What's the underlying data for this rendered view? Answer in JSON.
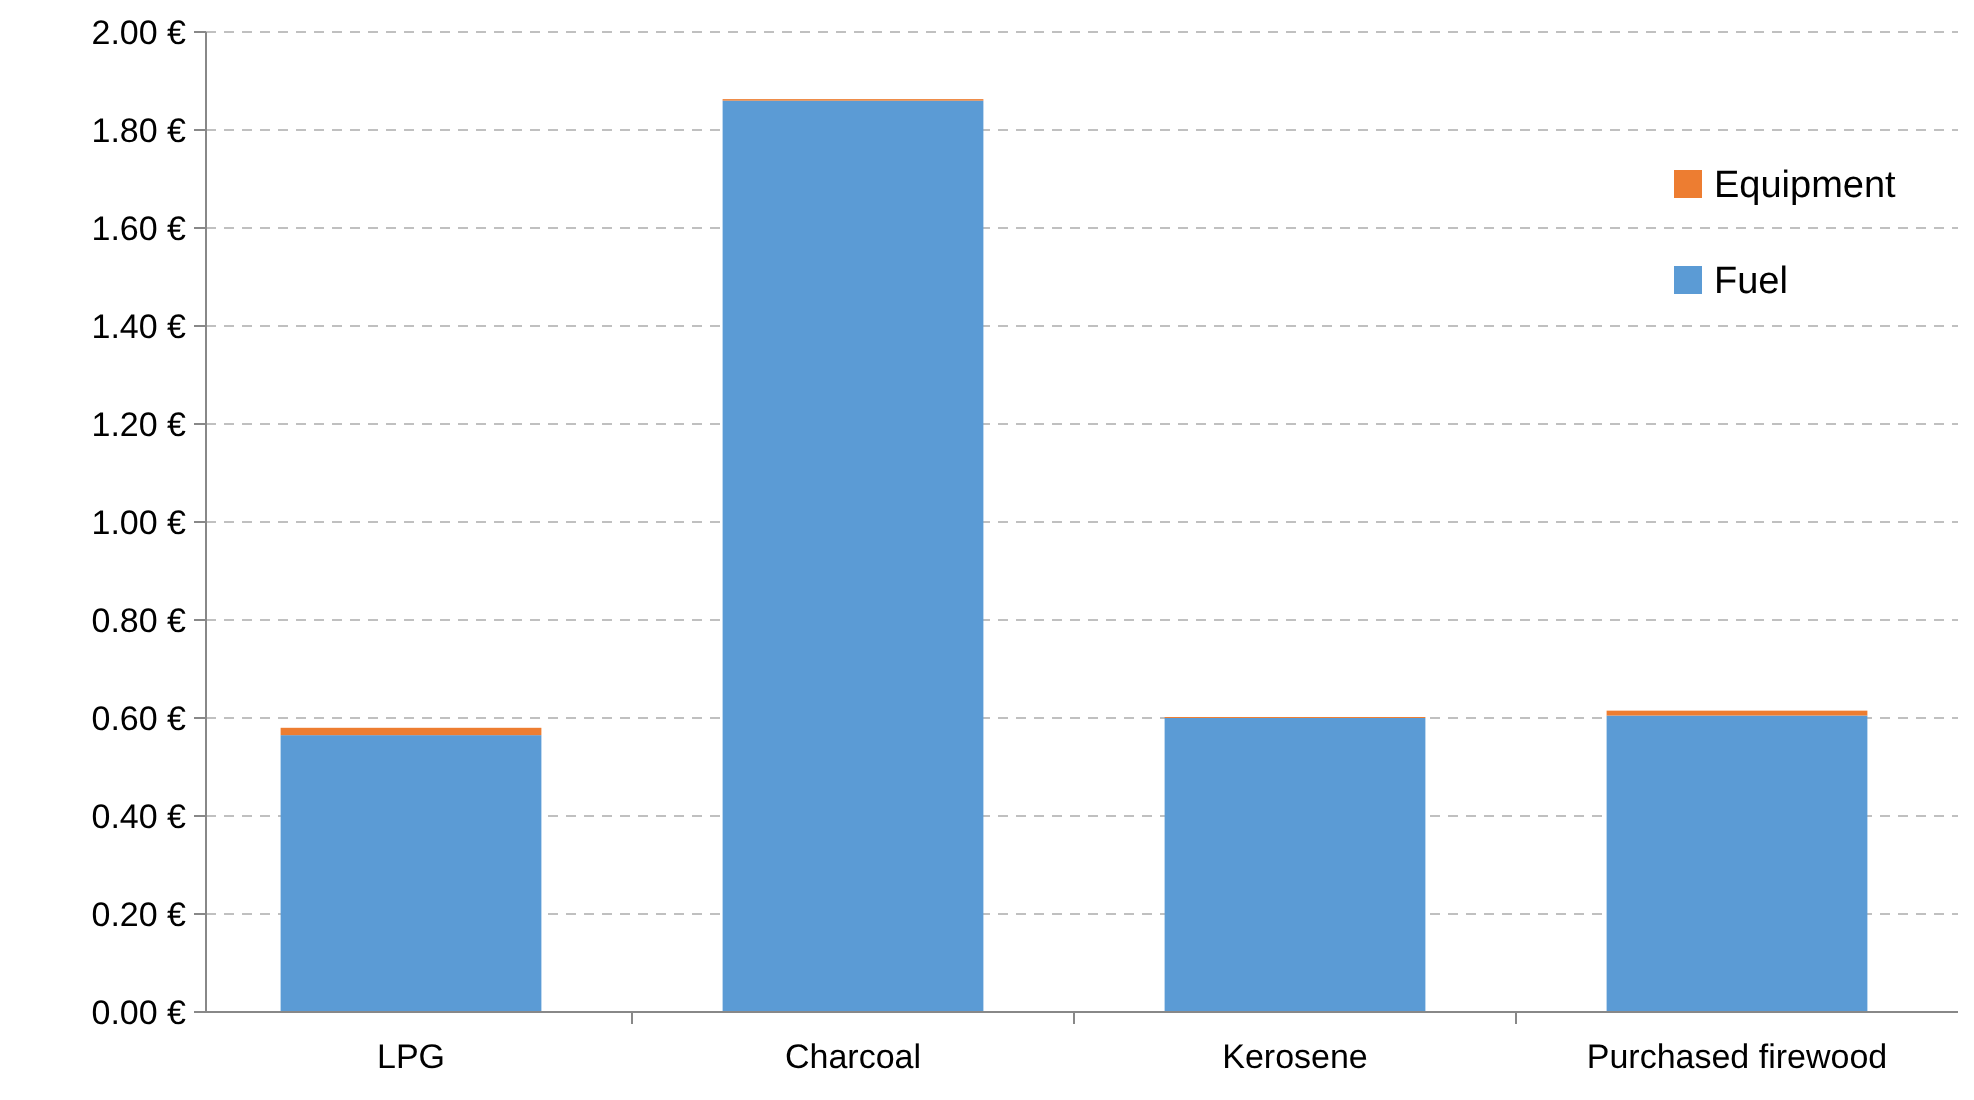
{
  "chart_data": {
    "type": "bar",
    "stacked": true,
    "categories": [
      "LPG",
      "Charcoal",
      "Kerosene",
      "Purchased firewood"
    ],
    "series": [
      {
        "name": "Fuel",
        "color": "#5b9bd5",
        "values": [
          0.565,
          1.86,
          0.6,
          0.605
        ]
      },
      {
        "name": "Equipment",
        "color": "#ed7d31",
        "values": [
          0.015,
          0.003,
          0.002,
          0.01
        ]
      }
    ],
    "ylim": [
      0,
      2
    ],
    "yticks": [
      {
        "value": 0,
        "label": "0.00 €"
      },
      {
        "value": 0.2,
        "label": "0.20 €"
      },
      {
        "value": 0.4,
        "label": "0.40 €"
      },
      {
        "value": 0.6,
        "label": "0.60 €"
      },
      {
        "value": 0.8,
        "label": "0.80 €"
      },
      {
        "value": 1,
        "label": "1.00 €"
      },
      {
        "value": 1.2,
        "label": "1.20 €"
      },
      {
        "value": 1.4,
        "label": "1.40 €"
      },
      {
        "value": 1.6,
        "label": "1.60 €"
      },
      {
        "value": 1.8,
        "label": "1.80 €"
      },
      {
        "value": 2,
        "label": "2.00 €"
      }
    ],
    "grid": "y",
    "legend": "top right"
  }
}
